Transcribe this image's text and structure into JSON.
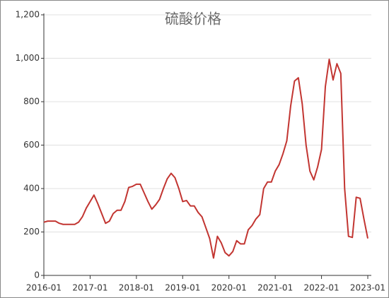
{
  "chart_data": {
    "type": "line",
    "title": "硫酸价格",
    "x": [
      "2016-01",
      "2016-02",
      "2016-03",
      "2016-04",
      "2016-05",
      "2016-06",
      "2016-07",
      "2016-08",
      "2016-09",
      "2016-10",
      "2016-11",
      "2016-12",
      "2017-01",
      "2017-02",
      "2017-03",
      "2017-04",
      "2017-05",
      "2017-06",
      "2017-07",
      "2017-08",
      "2017-09",
      "2017-10",
      "2017-11",
      "2017-12",
      "2018-01",
      "2018-02",
      "2018-03",
      "2018-04",
      "2018-05",
      "2018-06",
      "2018-07",
      "2018-08",
      "2018-09",
      "2018-10",
      "2018-11",
      "2018-12",
      "2019-01",
      "2019-02",
      "2019-03",
      "2019-04",
      "2019-05",
      "2019-06",
      "2019-07",
      "2019-08",
      "2019-09",
      "2019-10",
      "2019-11",
      "2019-12",
      "2020-01",
      "2020-02",
      "2020-03",
      "2020-04",
      "2020-05",
      "2020-06",
      "2020-07",
      "2020-08",
      "2020-09",
      "2020-10",
      "2020-11",
      "2020-12",
      "2021-01",
      "2021-02",
      "2021-03",
      "2021-04",
      "2021-05",
      "2021-06",
      "2021-07",
      "2021-08",
      "2021-09",
      "2021-10",
      "2021-11",
      "2021-12",
      "2022-01",
      "2022-02",
      "2022-03",
      "2022-04",
      "2022-05",
      "2022-06",
      "2022-07",
      "2022-08",
      "2022-09",
      "2022-10",
      "2022-11",
      "2022-12",
      "2023-01"
    ],
    "series": [
      {
        "color": "#c23531",
        "values": [
          245,
          250,
          250,
          250,
          240,
          235,
          235,
          235,
          235,
          245,
          270,
          310,
          340,
          370,
          330,
          285,
          240,
          250,
          285,
          300,
          300,
          340,
          405,
          410,
          420,
          420,
          380,
          340,
          305,
          325,
          350,
          400,
          445,
          470,
          450,
          400,
          340,
          345,
          320,
          320,
          290,
          270,
          220,
          170,
          80,
          180,
          150,
          105,
          90,
          110,
          160,
          145,
          145,
          210,
          230,
          260,
          280,
          400,
          430,
          430,
          480,
          510,
          560,
          620,
          780,
          895,
          910,
          790,
          600,
          480,
          440,
          500,
          580,
          870,
          995,
          900,
          975,
          930,
          400,
          180,
          175,
          360,
          355,
          260,
          170
        ]
      }
    ],
    "xlim": [
      "2016-01",
      "2023-01"
    ],
    "xticks": [
      "2016-01",
      "2017-01",
      "2018-01",
      "2019-01",
      "2020-01",
      "2021-01",
      "2022-01",
      "2023-01"
    ],
    "ylim": [
      0,
      1200
    ],
    "yticks": [
      0,
      200,
      400,
      600,
      800,
      {
        "value": 1000,
        "label": "1,000"
      },
      {
        "value": 1200,
        "label": "1,200"
      }
    ],
    "grid": true
  }
}
